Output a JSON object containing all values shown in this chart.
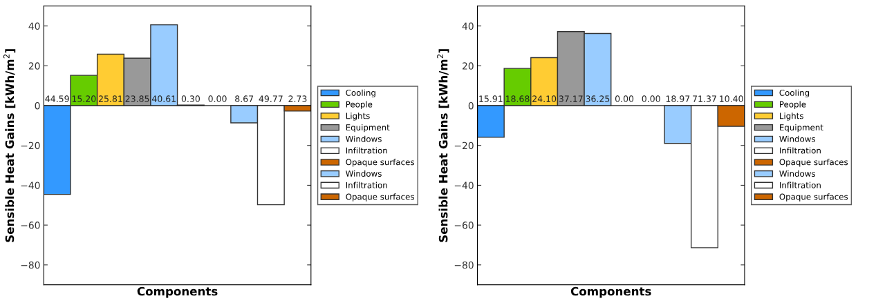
{
  "chart_data": [
    {
      "type": "bar",
      "xlabel": "Components",
      "ylabel": "Sensible Heat Gains [kWh/m$^{2}$]",
      "categories": [
        null,
        null,
        null,
        null,
        null,
        null,
        null,
        null,
        null,
        null
      ],
      "ylim": [
        -90,
        50
      ],
      "yticks": [
        {
          "value": -80,
          "label": "−80"
        },
        {
          "value": -60,
          "label": "−60"
        },
        {
          "value": -40,
          "label": "−40"
        },
        {
          "value": -20,
          "label": "−20"
        },
        0,
        20,
        40
      ],
      "tick_labels": "y",
      "grid": false,
      "legend": "right",
      "ref_lines": [
        {
          "axis": "y",
          "value": 0,
          "color": "#333333"
        }
      ],
      "series": [
        {
          "name": "Cooling",
          "color": "#3399ff",
          "values": [
            44.59,
            null,
            null,
            null,
            null,
            null,
            null,
            null,
            null,
            null
          ],
          "base": [
            -44.59,
            null,
            null,
            null,
            null,
            null,
            null,
            null,
            null,
            null
          ],
          "value_labels": [
            "44.59",
            null,
            null,
            null,
            null,
            null,
            null,
            null,
            null,
            null
          ]
        },
        {
          "name": "People",
          "color": "#66cc00",
          "values": [
            null,
            15.2,
            null,
            null,
            null,
            null,
            null,
            null,
            null,
            null
          ],
          "value_labels": [
            null,
            "15.20",
            null,
            null,
            null,
            null,
            null,
            null,
            null,
            null
          ]
        },
        {
          "name": "Lights",
          "color": "#ffcc33",
          "values": [
            null,
            null,
            25.81,
            null,
            null,
            null,
            null,
            null,
            null,
            null
          ],
          "value_labels": [
            null,
            null,
            "25.81",
            null,
            null,
            null,
            null,
            null,
            null,
            null
          ]
        },
        {
          "name": "Equipment",
          "color": "#999999",
          "values": [
            null,
            null,
            null,
            23.85,
            null,
            null,
            null,
            null,
            null,
            null
          ],
          "value_labels": [
            null,
            null,
            null,
            "23.85",
            null,
            null,
            null,
            null,
            null,
            null
          ]
        },
        {
          "name": "Windows",
          "color": "#99ccff",
          "values": [
            null,
            null,
            null,
            null,
            40.61,
            null,
            null,
            null,
            null,
            null
          ],
          "value_labels": [
            null,
            null,
            null,
            null,
            "40.61",
            null,
            null,
            null,
            null,
            null
          ]
        },
        {
          "name": "Infiltration",
          "color": "#ffffff",
          "values": [
            null,
            null,
            null,
            null,
            null,
            0.3,
            null,
            null,
            null,
            null
          ],
          "value_labels": [
            null,
            null,
            null,
            null,
            null,
            "0.30",
            null,
            null,
            null,
            null
          ]
        },
        {
          "name": "Opaque surfaces",
          "color": "#cc6600",
          "values": [
            null,
            null,
            null,
            null,
            null,
            null,
            0.0,
            null,
            null,
            null
          ],
          "value_labels": [
            null,
            null,
            null,
            null,
            null,
            null,
            "0.00",
            null,
            null,
            null
          ]
        },
        {
          "name": "Windows",
          "color": "#99ccff",
          "values": [
            null,
            null,
            null,
            null,
            null,
            null,
            null,
            8.67,
            null,
            null
          ],
          "base": [
            null,
            null,
            null,
            null,
            null,
            null,
            null,
            -8.67,
            null,
            null
          ],
          "value_labels": [
            null,
            null,
            null,
            null,
            null,
            null,
            null,
            "8.67",
            null,
            null
          ]
        },
        {
          "name": "Infiltration",
          "color": "#ffffff",
          "values": [
            null,
            null,
            null,
            null,
            null,
            null,
            null,
            null,
            49.77,
            null
          ],
          "base": [
            null,
            null,
            null,
            null,
            null,
            null,
            null,
            null,
            -49.77,
            null
          ],
          "value_labels": [
            null,
            null,
            null,
            null,
            null,
            null,
            null,
            null,
            "49.77",
            null
          ]
        },
        {
          "name": "Opaque surfaces",
          "color": "#cc6600",
          "values": [
            null,
            null,
            null,
            null,
            null,
            null,
            null,
            null,
            null,
            2.73
          ],
          "base": [
            null,
            null,
            null,
            null,
            null,
            null,
            null,
            null,
            null,
            -2.73
          ],
          "value_labels": [
            null,
            null,
            null,
            null,
            null,
            null,
            null,
            null,
            null,
            "2.73"
          ]
        }
      ]
    },
    {
      "type": "bar",
      "xlabel": "Components",
      "ylabel": "Sensible Heat Gains [kWh/m$^{2}$]",
      "categories": [
        null,
        null,
        null,
        null,
        null,
        null,
        null,
        null,
        null,
        null
      ],
      "ylim": [
        -90,
        50
      ],
      "yticks": [
        {
          "value": -80,
          "label": "−80"
        },
        {
          "value": -60,
          "label": "−60"
        },
        {
          "value": -40,
          "label": "−40"
        },
        {
          "value": -20,
          "label": "−20"
        },
        0,
        20,
        40
      ],
      "tick_labels": "y",
      "grid": false,
      "legend": "right",
      "ref_lines": [
        {
          "axis": "y",
          "value": 0,
          "color": "#333333"
        }
      ],
      "series": [
        {
          "name": "Cooling",
          "color": "#3399ff",
          "values": [
            15.91,
            null,
            null,
            null,
            null,
            null,
            null,
            null,
            null,
            null
          ],
          "base": [
            -15.91,
            null,
            null,
            null,
            null,
            null,
            null,
            null,
            null,
            null
          ],
          "value_labels": [
            "15.91",
            null,
            null,
            null,
            null,
            null,
            null,
            null,
            null,
            null
          ]
        },
        {
          "name": "People",
          "color": "#66cc00",
          "values": [
            null,
            18.68,
            null,
            null,
            null,
            null,
            null,
            null,
            null,
            null
          ],
          "value_labels": [
            null,
            "18.68",
            null,
            null,
            null,
            null,
            null,
            null,
            null,
            null
          ]
        },
        {
          "name": "Lights",
          "color": "#ffcc33",
          "values": [
            null,
            null,
            24.1,
            null,
            null,
            null,
            null,
            null,
            null,
            null
          ],
          "value_labels": [
            null,
            null,
            "24.10",
            null,
            null,
            null,
            null,
            null,
            null,
            null
          ]
        },
        {
          "name": "Equipment",
          "color": "#999999",
          "values": [
            null,
            null,
            null,
            37.17,
            null,
            null,
            null,
            null,
            null,
            null
          ],
          "value_labels": [
            null,
            null,
            null,
            "37.17",
            null,
            null,
            null,
            null,
            null,
            null
          ]
        },
        {
          "name": "Windows",
          "color": "#99ccff",
          "values": [
            null,
            null,
            null,
            null,
            36.25,
            null,
            null,
            null,
            null,
            null
          ],
          "value_labels": [
            null,
            null,
            null,
            null,
            "36.25",
            null,
            null,
            null,
            null,
            null
          ]
        },
        {
          "name": "Infiltration",
          "color": "#ffffff",
          "values": [
            null,
            null,
            null,
            null,
            null,
            0.0,
            null,
            null,
            null,
            null
          ],
          "value_labels": [
            null,
            null,
            null,
            null,
            null,
            "0.00",
            null,
            null,
            null,
            null
          ]
        },
        {
          "name": "Opaque surfaces",
          "color": "#cc6600",
          "values": [
            null,
            null,
            null,
            null,
            null,
            null,
            0.0,
            null,
            null,
            null
          ],
          "value_labels": [
            null,
            null,
            null,
            null,
            null,
            null,
            "0.00",
            null,
            null,
            null
          ]
        },
        {
          "name": "Windows",
          "color": "#99ccff",
          "values": [
            null,
            null,
            null,
            null,
            null,
            null,
            null,
            18.97,
            null,
            null
          ],
          "base": [
            null,
            null,
            null,
            null,
            null,
            null,
            null,
            -18.97,
            null,
            null
          ],
          "value_labels": [
            null,
            null,
            null,
            null,
            null,
            null,
            null,
            "18.97",
            null,
            null
          ]
        },
        {
          "name": "Infiltration",
          "color": "#ffffff",
          "values": [
            null,
            null,
            null,
            null,
            null,
            null,
            null,
            null,
            71.37,
            null
          ],
          "base": [
            null,
            null,
            null,
            null,
            null,
            null,
            null,
            null,
            -71.37,
            null
          ],
          "value_labels": [
            null,
            null,
            null,
            null,
            null,
            null,
            null,
            null,
            "71.37",
            null
          ]
        },
        {
          "name": "Opaque surfaces",
          "color": "#cc6600",
          "values": [
            null,
            null,
            null,
            null,
            null,
            null,
            null,
            null,
            null,
            10.4
          ],
          "base": [
            null,
            null,
            null,
            null,
            null,
            null,
            null,
            null,
            null,
            -10.4
          ],
          "value_labels": [
            null,
            null,
            null,
            null,
            null,
            null,
            null,
            null,
            null,
            "10.40"
          ]
        }
      ]
    }
  ]
}
